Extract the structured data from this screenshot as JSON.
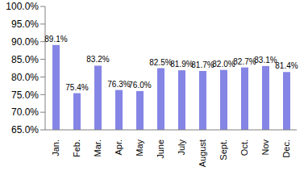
{
  "chart_data": {
    "type": "bar",
    "categories": [
      "Jan.",
      "Feb.",
      "Mar.",
      "Apr.",
      "May",
      "June",
      "July",
      "August",
      "Sept.",
      "Oct.",
      "Nov",
      "Dec."
    ],
    "values": [
      89.1,
      75.4,
      83.2,
      76.3,
      76.0,
      82.5,
      81.9,
      81.7,
      82.0,
      82.7,
      83.1,
      81.4
    ],
    "value_labels": [
      "89.1%",
      "75.4%",
      "83.2%",
      "76.3%",
      "76.0%",
      "82.5%",
      "81.9%",
      "81.7%",
      "82.0%",
      "82.7%",
      "83.1%",
      "81.4%"
    ],
    "color": "#8585e6",
    "ylim": [
      65,
      100
    ],
    "yticks": [
      {
        "value": 65,
        "label": "65.0%"
      },
      {
        "value": 70,
        "label": "70.0%"
      },
      {
        "value": 75,
        "label": "75.0%"
      },
      {
        "value": 80,
        "label": "80.0%"
      },
      {
        "value": 85,
        "label": "85.0%"
      },
      {
        "value": 90,
        "label": "90.0%"
      },
      {
        "value": 95,
        "label": "95.0%"
      },
      {
        "value": 100,
        "label": "100.0%"
      }
    ],
    "grid": false,
    "data_labels": true
  }
}
